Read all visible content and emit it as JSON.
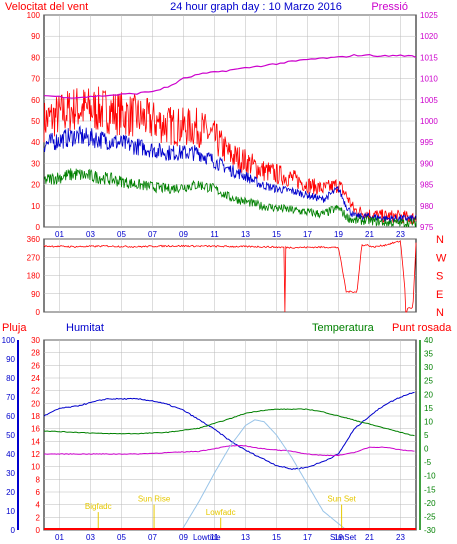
{
  "header": {
    "left_label": "Velocitat del vent",
    "title": "24 hour graph day : 10 Marzo 2016",
    "right_label": "Pressió"
  },
  "colors": {
    "red": "#ff0000",
    "blue": "#0000cc",
    "green": "#008000",
    "magenta": "#cc00cc",
    "lightblue": "#99c4e8",
    "yellow": "#e6c800",
    "grid": "#bbbbbb"
  },
  "chart_data": [
    {
      "type": "line",
      "panel": "wind",
      "ylim": [
        0,
        100
      ],
      "y_ticks": [
        "0",
        "10",
        "20",
        "30",
        "40",
        "50",
        "60",
        "70",
        "80",
        "90",
        "100"
      ],
      "y2lim": [
        975,
        1025
      ],
      "y2_ticks": [
        "975",
        "980",
        "985",
        "990",
        "995",
        "1000",
        "1005",
        "1010",
        "1015",
        "1020",
        "1025"
      ],
      "x_ticks": [
        "01",
        "03",
        "05",
        "07",
        "09",
        "11",
        "13",
        "15",
        "17",
        "19",
        "21",
        "23"
      ],
      "series": [
        {
          "color": "red",
          "x": [
            0,
            2,
            4,
            6,
            8,
            9,
            10,
            11,
            12,
            13,
            14,
            15,
            16,
            17,
            18,
            18.6,
            19,
            19.5,
            20,
            21,
            22,
            23,
            24
          ],
          "y": [
            50,
            56,
            55,
            52,
            48,
            47,
            47,
            42,
            34,
            31,
            27,
            25,
            23,
            20,
            18,
            19,
            20,
            15,
            8,
            6,
            5,
            5,
            4
          ]
        },
        {
          "color": "blue",
          "x": [
            0,
            2,
            4,
            6,
            8,
            9,
            10,
            11,
            12,
            13,
            14,
            15,
            16,
            17,
            18,
            18.6,
            19,
            19.5,
            20,
            21,
            22,
            23,
            24
          ],
          "y": [
            39,
            43,
            41,
            38,
            35,
            35,
            35,
            31,
            27,
            24,
            20,
            18,
            17,
            15,
            13,
            16,
            18,
            10,
            5,
            5,
            4,
            4,
            4
          ]
        },
        {
          "color": "green",
          "x": [
            0,
            2,
            4,
            6,
            8,
            9,
            10,
            11,
            12,
            13,
            14,
            15,
            16,
            17,
            18,
            18.6,
            19,
            19.5,
            20,
            21,
            22,
            23,
            24
          ],
          "y": [
            22,
            25,
            23,
            20,
            18,
            19,
            20,
            18,
            14,
            12,
            10,
            9,
            8,
            7,
            6,
            8,
            9,
            5,
            3,
            3,
            2,
            2,
            2
          ]
        },
        {
          "color": "magenta",
          "axis": "right",
          "x": [
            0,
            2,
            4,
            6,
            7,
            8,
            9,
            10,
            11,
            12,
            13,
            14,
            15,
            16,
            17,
            18,
            19,
            20,
            21,
            22,
            23,
            24
          ],
          "y": [
            1006,
            1005.5,
            1006,
            1006.5,
            1007,
            1008,
            1010,
            1011,
            1011.5,
            1012,
            1012.5,
            1013,
            1013.5,
            1014,
            1014.5,
            1014.8,
            1015,
            1015.5,
            1015.5,
            1015.3,
            1015.5,
            1015.2
          ]
        }
      ]
    },
    {
      "type": "line",
      "panel": "wind_direction",
      "ylim": [
        0,
        360
      ],
      "y_ticks": [
        "0",
        "90",
        "180",
        "270",
        "360"
      ],
      "right_labels": [
        "N",
        "W",
        "S",
        "E",
        "N"
      ],
      "series": [
        {
          "color": "red",
          "x": [
            0,
            2,
            4,
            6,
            8,
            10,
            12,
            14,
            16,
            18,
            19,
            19.5,
            20.2,
            20.5,
            20.9,
            21.2,
            22,
            22.5,
            23,
            23.4,
            23.8,
            24
          ],
          "y": [
            325,
            322,
            325,
            322,
            326,
            325,
            323,
            322,
            318,
            320,
            318,
            100,
            100,
            330,
            330,
            320,
            330,
            340,
            350,
            20,
            20,
            340
          ]
        }
      ]
    },
    {
      "type": "line",
      "panel": "humidity_temperature",
      "labels": [
        "Pluja",
        "Humitat",
        "Temperatura",
        "Punt rosada"
      ],
      "y_ticks_humidity": [
        "0",
        "10",
        "20",
        "30",
        "40",
        "50",
        "60",
        "70",
        "80",
        "90",
        "100"
      ],
      "y_ticks_rain": [
        "0",
        "2",
        "4",
        "6",
        "8",
        "10",
        "12",
        "14",
        "16",
        "18",
        "20",
        "22",
        "24",
        "26",
        "28",
        "30"
      ],
      "y_ticks_temp": [
        "-30",
        "-25",
        "-20",
        "-15",
        "-10",
        "-5",
        "0",
        "5",
        "10",
        "15",
        "20",
        "25",
        "30",
        "35",
        "40"
      ],
      "temp_ylim": [
        -30,
        40
      ],
      "humidity_ylim": [
        0,
        100
      ],
      "x_ticks": [
        "01",
        "03",
        "05",
        "07",
        "09",
        "11",
        "13",
        "15",
        "17",
        "19",
        "21",
        "23"
      ],
      "series": [
        {
          "color": "blue",
          "axis": "humidity",
          "x": [
            0,
            1,
            2,
            3,
            4,
            5,
            6,
            7,
            8,
            9,
            10,
            11,
            12,
            13,
            14,
            15,
            16,
            17,
            18,
            19,
            20,
            21,
            22,
            23,
            24
          ],
          "y": [
            60,
            64,
            65,
            67,
            69,
            69,
            69,
            68,
            66,
            63,
            58,
            53,
            47,
            42,
            38,
            34,
            32,
            33,
            36,
            40,
            53,
            60,
            66,
            70,
            73
          ]
        },
        {
          "color": "green",
          "axis": "temperature",
          "x": [
            0,
            2,
            4,
            6,
            8,
            10,
            12,
            13,
            14,
            15,
            16,
            17,
            18,
            19,
            20,
            21,
            22,
            23,
            24
          ],
          "y": [
            6.5,
            6,
            5.5,
            5.5,
            6,
            7.5,
            11,
            13,
            14,
            14.5,
            14.5,
            14.5,
            13.5,
            12,
            10.5,
            9,
            7.5,
            6,
            4.5
          ]
        },
        {
          "color": "magenta",
          "axis": "temperature",
          "x": [
            0,
            2,
            4,
            6,
            8,
            10,
            11,
            12,
            13,
            14,
            15,
            16,
            17,
            18,
            19,
            20,
            21,
            22,
            23,
            24
          ],
          "y": [
            -2,
            -2,
            -2,
            -2,
            -1.5,
            -1,
            0,
            1,
            1,
            0,
            -0.5,
            -1,
            -2,
            -2.5,
            -2.5,
            -1.5,
            0.5,
            0.5,
            -0.5,
            -1
          ]
        },
        {
          "color": "lightblue",
          "axis": "humidity",
          "x": [
            8.9,
            10,
            11,
            12,
            13,
            13.6,
            14.2,
            15,
            16,
            17,
            18,
            19.5
          ],
          "y": [
            0,
            15,
            30,
            44,
            55,
            58,
            57,
            50,
            38,
            24,
            10,
            0
          ]
        }
      ],
      "annotations": [
        {
          "text": "Bigfadc",
          "x": 3.5,
          "y_pct": 11
        },
        {
          "text": "Sun Rise",
          "x": 7.1,
          "y_pct": 15
        },
        {
          "text": "Lowfadc",
          "x": 11.4,
          "y_pct": 8
        },
        {
          "text": "Sun Set",
          "x": 19.2,
          "y_pct": 15
        }
      ],
      "x_labels_extra": [
        "Lowtide",
        "SunSet"
      ]
    }
  ]
}
